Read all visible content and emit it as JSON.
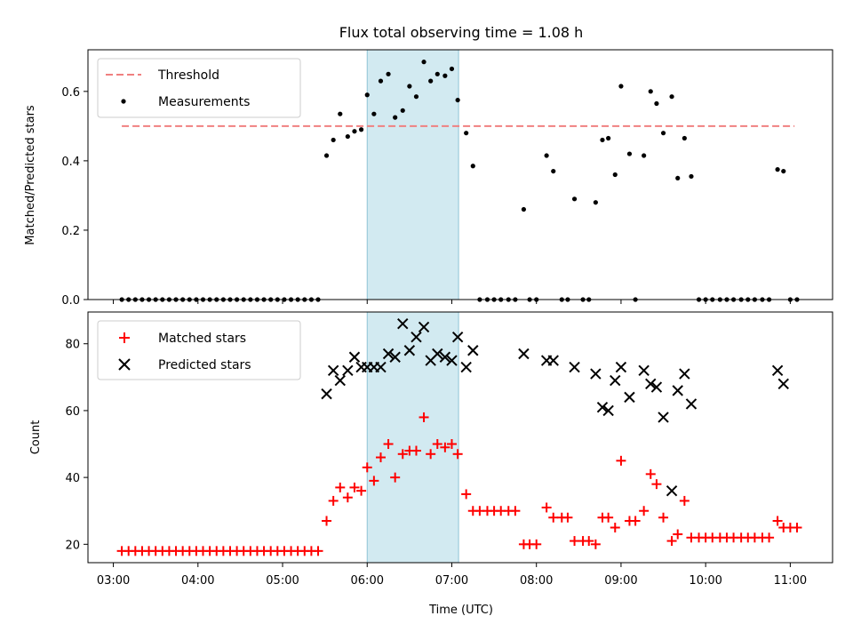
{
  "title": "Flux total observing time = 1.08 h",
  "xlabel": "Time (UTC)",
  "highlight": {
    "start": 6.0,
    "end": 7.08
  },
  "chart_data": [
    {
      "type": "scatter",
      "panel": "top",
      "ylabel": "Matched/Predicted stars",
      "xlim": [
        2.7,
        11.5
      ],
      "ylim": [
        0.0,
        0.72
      ],
      "yticks": [
        0.0,
        0.2,
        0.4,
        0.6
      ],
      "ytick_labels": [
        "0.0",
        "0.2",
        "0.4",
        "0.6"
      ],
      "legend_position": "top-left",
      "threshold": {
        "name": "Threshold",
        "value": 0.5,
        "x_range": [
          3.1,
          11.05
        ],
        "color": "#f08080"
      },
      "series": [
        {
          "name": "Measurements",
          "color": "#000000",
          "points": [
            [
              3.1,
              0
            ],
            [
              3.18,
              0
            ],
            [
              3.26,
              0
            ],
            [
              3.34,
              0
            ],
            [
              3.42,
              0
            ],
            [
              3.5,
              0
            ],
            [
              3.58,
              0
            ],
            [
              3.66,
              0
            ],
            [
              3.74,
              0
            ],
            [
              3.82,
              0
            ],
            [
              3.9,
              0
            ],
            [
              3.98,
              0
            ],
            [
              4.06,
              0
            ],
            [
              4.14,
              0
            ],
            [
              4.22,
              0
            ],
            [
              4.3,
              0
            ],
            [
              4.38,
              0
            ],
            [
              4.46,
              0
            ],
            [
              4.54,
              0
            ],
            [
              4.62,
              0
            ],
            [
              4.7,
              0
            ],
            [
              4.78,
              0
            ],
            [
              4.86,
              0
            ],
            [
              4.94,
              0
            ],
            [
              5.02,
              0
            ],
            [
              5.1,
              0
            ],
            [
              5.18,
              0
            ],
            [
              5.26,
              0
            ],
            [
              5.34,
              0
            ],
            [
              5.42,
              0
            ],
            [
              5.52,
              0.415
            ],
            [
              5.6,
              0.46
            ],
            [
              5.68,
              0.535
            ],
            [
              5.77,
              0.47
            ],
            [
              5.85,
              0.485
            ],
            [
              5.93,
              0.49
            ],
            [
              6.0,
              0.59
            ],
            [
              6.08,
              0.535
            ],
            [
              6.16,
              0.63
            ],
            [
              6.25,
              0.65
            ],
            [
              6.33,
              0.525
            ],
            [
              6.42,
              0.545
            ],
            [
              6.5,
              0.615
            ],
            [
              6.58,
              0.585
            ],
            [
              6.67,
              0.685
            ],
            [
              6.75,
              0.63
            ],
            [
              6.83,
              0.65
            ],
            [
              6.92,
              0.645
            ],
            [
              7.0,
              0.665
            ],
            [
              7.07,
              0.575
            ],
            [
              7.17,
              0.48
            ],
            [
              7.25,
              0.385
            ],
            [
              7.33,
              0
            ],
            [
              7.42,
              0
            ],
            [
              7.5,
              0
            ],
            [
              7.58,
              0
            ],
            [
              7.67,
              0
            ],
            [
              7.75,
              0
            ],
            [
              7.85,
              0.26
            ],
            [
              7.92,
              0
            ],
            [
              8.0,
              0
            ],
            [
              8.12,
              0.415
            ],
            [
              8.2,
              0.37
            ],
            [
              8.3,
              0
            ],
            [
              8.37,
              0
            ],
            [
              8.45,
              0.29
            ],
            [
              8.55,
              0
            ],
            [
              8.62,
              0
            ],
            [
              8.7,
              0.28
            ],
            [
              8.78,
              0.46
            ],
            [
              8.85,
              0.465
            ],
            [
              8.93,
              0.36
            ],
            [
              9.0,
              0.615
            ],
            [
              9.1,
              0.42
            ],
            [
              9.17,
              0
            ],
            [
              9.27,
              0.415
            ],
            [
              9.35,
              0.6
            ],
            [
              9.42,
              0.565
            ],
            [
              9.5,
              0.48
            ],
            [
              9.6,
              0.585
            ],
            [
              9.67,
              0.35
            ],
            [
              9.75,
              0.465
            ],
            [
              9.83,
              0.355
            ],
            [
              9.92,
              0
            ],
            [
              10.0,
              0
            ],
            [
              10.08,
              0
            ],
            [
              10.17,
              0
            ],
            [
              10.25,
              0
            ],
            [
              10.33,
              0
            ],
            [
              10.42,
              0
            ],
            [
              10.5,
              0
            ],
            [
              10.58,
              0
            ],
            [
              10.67,
              0
            ],
            [
              10.75,
              0
            ],
            [
              10.85,
              0.375
            ],
            [
              10.92,
              0.37
            ],
            [
              11.0,
              0
            ],
            [
              11.08,
              0
            ]
          ]
        }
      ]
    },
    {
      "type": "scatter",
      "panel": "bottom",
      "ylabel": "Count",
      "xlim": [
        2.7,
        11.5
      ],
      "ylim": [
        14.5,
        89.5
      ],
      "yticks": [
        20,
        40,
        60,
        80
      ],
      "ytick_labels": [
        "20",
        "40",
        "60",
        "80"
      ],
      "xticks": [
        3,
        4,
        5,
        6,
        7,
        8,
        9,
        10,
        11
      ],
      "xtick_labels": [
        "03:00",
        "04:00",
        "05:00",
        "06:00",
        "07:00",
        "08:00",
        "09:00",
        "10:00",
        "11:00"
      ],
      "legend_position": "top-left",
      "series": [
        {
          "name": "Matched stars",
          "marker": "+",
          "color": "#ff0000",
          "points": [
            [
              3.1,
              18
            ],
            [
              3.18,
              18
            ],
            [
              3.26,
              18
            ],
            [
              3.34,
              18
            ],
            [
              3.42,
              18
            ],
            [
              3.5,
              18
            ],
            [
              3.58,
              18
            ],
            [
              3.66,
              18
            ],
            [
              3.74,
              18
            ],
            [
              3.82,
              18
            ],
            [
              3.9,
              18
            ],
            [
              3.98,
              18
            ],
            [
              4.06,
              18
            ],
            [
              4.14,
              18
            ],
            [
              4.22,
              18
            ],
            [
              4.3,
              18
            ],
            [
              4.38,
              18
            ],
            [
              4.46,
              18
            ],
            [
              4.54,
              18
            ],
            [
              4.62,
              18
            ],
            [
              4.7,
              18
            ],
            [
              4.78,
              18
            ],
            [
              4.86,
              18
            ],
            [
              4.94,
              18
            ],
            [
              5.02,
              18
            ],
            [
              5.1,
              18
            ],
            [
              5.18,
              18
            ],
            [
              5.26,
              18
            ],
            [
              5.34,
              18
            ],
            [
              5.42,
              18
            ],
            [
              5.52,
              27
            ],
            [
              5.6,
              33
            ],
            [
              5.68,
              37
            ],
            [
              5.77,
              34
            ],
            [
              5.85,
              37
            ],
            [
              5.93,
              36
            ],
            [
              6.0,
              43
            ],
            [
              6.08,
              39
            ],
            [
              6.16,
              46
            ],
            [
              6.25,
              50
            ],
            [
              6.33,
              40
            ],
            [
              6.42,
              47
            ],
            [
              6.5,
              48
            ],
            [
              6.58,
              48
            ],
            [
              6.67,
              58
            ],
            [
              6.75,
              47
            ],
            [
              6.83,
              50
            ],
            [
              6.92,
              49
            ],
            [
              7.0,
              50
            ],
            [
              7.07,
              47
            ],
            [
              7.17,
              35
            ],
            [
              7.25,
              30
            ],
            [
              7.33,
              30
            ],
            [
              7.42,
              30
            ],
            [
              7.5,
              30
            ],
            [
              7.58,
              30
            ],
            [
              7.67,
              30
            ],
            [
              7.75,
              30
            ],
            [
              7.85,
              20
            ],
            [
              7.92,
              20
            ],
            [
              8.0,
              20
            ],
            [
              8.12,
              31
            ],
            [
              8.2,
              28
            ],
            [
              8.3,
              28
            ],
            [
              8.37,
              28
            ],
            [
              8.45,
              21
            ],
            [
              8.55,
              21
            ],
            [
              8.62,
              21
            ],
            [
              8.7,
              20
            ],
            [
              8.78,
              28
            ],
            [
              8.85,
              28
            ],
            [
              8.93,
              25
            ],
            [
              9.0,
              45
            ],
            [
              9.1,
              27
            ],
            [
              9.17,
              27
            ],
            [
              9.27,
              30
            ],
            [
              9.35,
              41
            ],
            [
              9.42,
              38
            ],
            [
              9.5,
              28
            ],
            [
              9.6,
              21
            ],
            [
              9.67,
              23
            ],
            [
              9.75,
              33
            ],
            [
              9.83,
              22
            ],
            [
              9.92,
              22
            ],
            [
              10.0,
              22
            ],
            [
              10.08,
              22
            ],
            [
              10.17,
              22
            ],
            [
              10.25,
              22
            ],
            [
              10.33,
              22
            ],
            [
              10.42,
              22
            ],
            [
              10.5,
              22
            ],
            [
              10.58,
              22
            ],
            [
              10.67,
              22
            ],
            [
              10.75,
              22
            ],
            [
              10.85,
              27
            ],
            [
              10.92,
              25
            ],
            [
              11.0,
              25
            ],
            [
              11.08,
              25
            ]
          ]
        },
        {
          "name": "Predicted stars",
          "marker": "x",
          "color": "#000000",
          "points": [
            [
              5.52,
              65
            ],
            [
              5.6,
              72
            ],
            [
              5.68,
              69
            ],
            [
              5.77,
              72
            ],
            [
              5.85,
              76
            ],
            [
              5.93,
              73
            ],
            [
              6.0,
              73
            ],
            [
              6.08,
              73
            ],
            [
              6.16,
              73
            ],
            [
              6.25,
              77
            ],
            [
              6.33,
              76
            ],
            [
              6.42,
              86
            ],
            [
              6.5,
              78
            ],
            [
              6.58,
              82
            ],
            [
              6.67,
              85
            ],
            [
              6.75,
              75
            ],
            [
              6.83,
              77
            ],
            [
              6.92,
              76
            ],
            [
              7.0,
              75
            ],
            [
              7.07,
              82
            ],
            [
              7.17,
              73
            ],
            [
              7.25,
              78
            ],
            [
              7.85,
              77
            ],
            [
              8.12,
              75
            ],
            [
              8.2,
              75
            ],
            [
              8.45,
              73
            ],
            [
              8.7,
              71
            ],
            [
              8.78,
              61
            ],
            [
              8.85,
              60
            ],
            [
              8.93,
              69
            ],
            [
              9.0,
              73
            ],
            [
              9.1,
              64
            ],
            [
              9.27,
              72
            ],
            [
              9.35,
              68
            ],
            [
              9.42,
              67
            ],
            [
              9.5,
              58
            ],
            [
              9.6,
              36
            ],
            [
              9.67,
              66
            ],
            [
              9.75,
              71
            ],
            [
              9.83,
              62
            ],
            [
              10.85,
              72
            ],
            [
              10.92,
              68
            ]
          ]
        }
      ]
    }
  ]
}
